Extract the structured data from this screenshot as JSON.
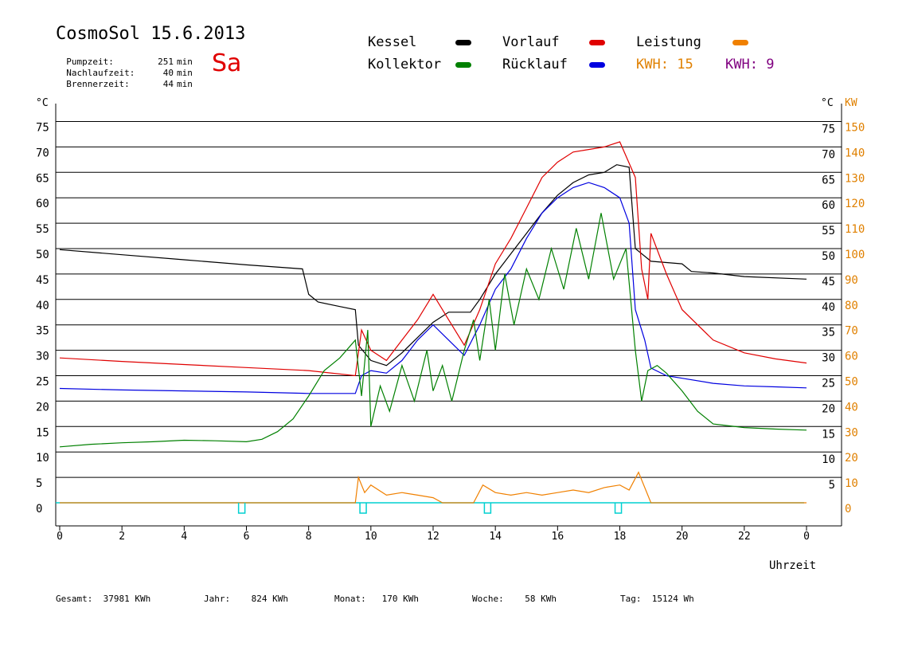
{
  "header": {
    "title": "CosmoSol 15.6.2013",
    "day": "Sa",
    "stats": [
      {
        "label": "Pumpzeit:",
        "value": "251",
        "unit": "min"
      },
      {
        "label": "Nachlaufzeit:",
        "value": "40",
        "unit": "min"
      },
      {
        "label": "Brennerzeit:",
        "value": "44",
        "unit": "min"
      }
    ]
  },
  "legend": {
    "kessel": "Kessel",
    "vorlauf": "Vorlauf",
    "leistung": "Leistung",
    "kollektor": "Kollektor",
    "ruecklauf": "Rücklauf",
    "kwh1_label": "KWH:",
    "kwh1_value": "15",
    "kwh2_label": "KWH:",
    "kwh2_value": "9"
  },
  "colors": {
    "kessel": "#000000",
    "vorlauf": "#e00000",
    "leistung": "#f08000",
    "kollektor": "#008000",
    "ruecklauf": "#0000e0",
    "kwh2": "#800080",
    "pump": "#00d0d0",
    "kw_axis": "#e08000"
  },
  "footer": {
    "gesamt_label": "Gesamt:",
    "gesamt_value": "37981 KWh",
    "jahr_label": "Jahr:",
    "jahr_value": "824 KWh",
    "monat_label": "Monat:",
    "monat_value": "170 KWh",
    "woche_label": "Woche:",
    "woche_value": "58 KWh",
    "tag_label": "Tag:",
    "tag_value": "15124 Wh"
  },
  "chart_data": {
    "type": "line",
    "xlabel": "Uhrzeit",
    "ylabel_left": "°C",
    "ylabel_right_1": "°C",
    "ylabel_right_2": "KW",
    "xlim": [
      0,
      24
    ],
    "ylim": [
      -5,
      80
    ],
    "x_ticks": [
      "0",
      "2",
      "4",
      "6",
      "8",
      "10",
      "12",
      "14",
      "16",
      "18",
      "20",
      "22",
      "0"
    ],
    "y_ticks_left": [
      0,
      5,
      10,
      15,
      20,
      25,
      30,
      35,
      40,
      45,
      50,
      55,
      60,
      65,
      70,
      75
    ],
    "y_ticks_right": [
      5,
      10,
      15,
      20,
      25,
      30,
      35,
      40,
      45,
      50,
      55,
      60,
      65,
      70,
      75
    ],
    "kw_ticks": [
      0,
      10,
      20,
      30,
      40,
      50,
      60,
      70,
      80,
      90,
      100,
      110,
      120,
      130,
      140,
      150
    ],
    "grid": true,
    "series": [
      {
        "name": "Kessel",
        "color": "#000000",
        "x": [
          0,
          2,
          4,
          6,
          7.8,
          8.0,
          8.3,
          9.0,
          9.5,
          9.6,
          10.0,
          10.5,
          11.0,
          11.5,
          12.0,
          12.5,
          13.2,
          13.5,
          14.0,
          14.5,
          15.0,
          15.5,
          16.0,
          16.5,
          17.0,
          17.5,
          17.9,
          18.3,
          18.5,
          19.0,
          20.0,
          20.3,
          21.0,
          22.0,
          24.0
        ],
        "y": [
          49.8,
          48.8,
          47.8,
          46.8,
          46.0,
          41.0,
          39.5,
          38.6,
          38.0,
          31.0,
          28.0,
          27.0,
          29.5,
          32.5,
          35.5,
          37.5,
          37.5,
          40.0,
          45.0,
          49.0,
          53.0,
          57.0,
          60.5,
          63.0,
          64.5,
          65.0,
          66.5,
          66.0,
          50.0,
          47.5,
          47.0,
          45.5,
          45.2,
          44.5,
          44.0
        ]
      },
      {
        "name": "Vorlauf",
        "color": "#e00000",
        "x": [
          0,
          2,
          4,
          6,
          8,
          9.5,
          9.7,
          10.0,
          10.5,
          11.0,
          11.5,
          12.0,
          12.5,
          13.0,
          13.5,
          14.0,
          14.5,
          15.0,
          15.5,
          16.0,
          16.5,
          17.0,
          17.5,
          18.0,
          18.5,
          18.7,
          18.9,
          19.0,
          19.5,
          20.0,
          21.0,
          22.0,
          23.0,
          24.0
        ],
        "y": [
          28.5,
          27.8,
          27.2,
          26.6,
          26.0,
          25.0,
          34.0,
          30.0,
          28.0,
          32.0,
          36.0,
          41.0,
          36.0,
          31.0,
          38.0,
          47.0,
          52.0,
          58.0,
          64.0,
          67.0,
          69.0,
          69.5,
          70.0,
          71.0,
          64.0,
          46.0,
          40.0,
          53.0,
          45.0,
          38.0,
          32.0,
          29.5,
          28.3,
          27.5
        ]
      },
      {
        "name": "Rücklauf",
        "color": "#0000e0",
        "x": [
          0,
          2,
          4,
          6,
          8,
          9.5,
          9.7,
          10.0,
          10.5,
          11.0,
          11.5,
          12.0,
          12.5,
          13.0,
          13.5,
          14.0,
          14.5,
          15.0,
          15.5,
          16.0,
          16.5,
          17.0,
          17.5,
          18.0,
          18.3,
          18.5,
          18.8,
          19.0,
          19.5,
          20.0,
          21.0,
          22.0,
          23.0,
          24.0
        ],
        "y": [
          22.5,
          22.2,
          22.0,
          21.8,
          21.5,
          21.5,
          25.0,
          26.0,
          25.5,
          28.0,
          32.0,
          35.0,
          32.0,
          29.0,
          35.0,
          42.0,
          46.0,
          52.0,
          57.0,
          60.0,
          62.0,
          63.0,
          62.0,
          60.0,
          55.0,
          38.0,
          32.0,
          26.5,
          25.0,
          24.5,
          23.5,
          23.0,
          22.8,
          22.6
        ]
      },
      {
        "name": "Kollektor",
        "color": "#008000",
        "x": [
          0,
          1,
          2,
          3,
          4,
          5,
          6,
          6.5,
          7.0,
          7.5,
          8.0,
          8.5,
          9.0,
          9.5,
          9.7,
          9.9,
          10.0,
          10.3,
          10.6,
          11.0,
          11.4,
          11.8,
          12.0,
          12.3,
          12.6,
          13.0,
          13.3,
          13.5,
          13.8,
          14.0,
          14.3,
          14.6,
          15.0,
          15.4,
          15.8,
          16.2,
          16.6,
          17.0,
          17.4,
          17.8,
          18.2,
          18.5,
          18.7,
          18.9,
          19.2,
          19.5,
          20.0,
          20.5,
          21.0,
          22.0,
          23.0,
          24.0
        ],
        "y": [
          11.0,
          11.5,
          11.8,
          12.0,
          12.3,
          12.2,
          12.0,
          12.5,
          14.0,
          16.5,
          21.0,
          26.0,
          28.5,
          32.0,
          21.0,
          34.0,
          15.0,
          23.0,
          18.0,
          27.0,
          20.0,
          30.0,
          22.0,
          27.0,
          20.0,
          30.0,
          36.0,
          28.0,
          40.0,
          30.0,
          45.0,
          35.0,
          46.0,
          40.0,
          50.0,
          42.0,
          54.0,
          44.0,
          57.0,
          44.0,
          50.0,
          30.0,
          20.0,
          26.0,
          27.0,
          25.5,
          22.0,
          18.0,
          15.5,
          14.8,
          14.5,
          14.3
        ]
      },
      {
        "name": "Leistung",
        "color": "#f08000",
        "x": [
          0,
          9.5,
          9.6,
          9.8,
          10.0,
          10.5,
          11.0,
          11.5,
          12.0,
          12.3,
          13.3,
          13.6,
          14.0,
          14.5,
          15.0,
          15.5,
          16.0,
          16.5,
          17.0,
          17.5,
          18.0,
          18.3,
          18.6,
          19.0,
          24.0
        ],
        "y": [
          0,
          0,
          5.0,
          2.0,
          3.5,
          1.5,
          2.0,
          1.5,
          1.0,
          0,
          0,
          3.5,
          2.0,
          1.5,
          2.0,
          1.5,
          2.0,
          2.5,
          2.0,
          3.0,
          3.5,
          2.5,
          6.0,
          0,
          0
        ]
      }
    ]
  }
}
